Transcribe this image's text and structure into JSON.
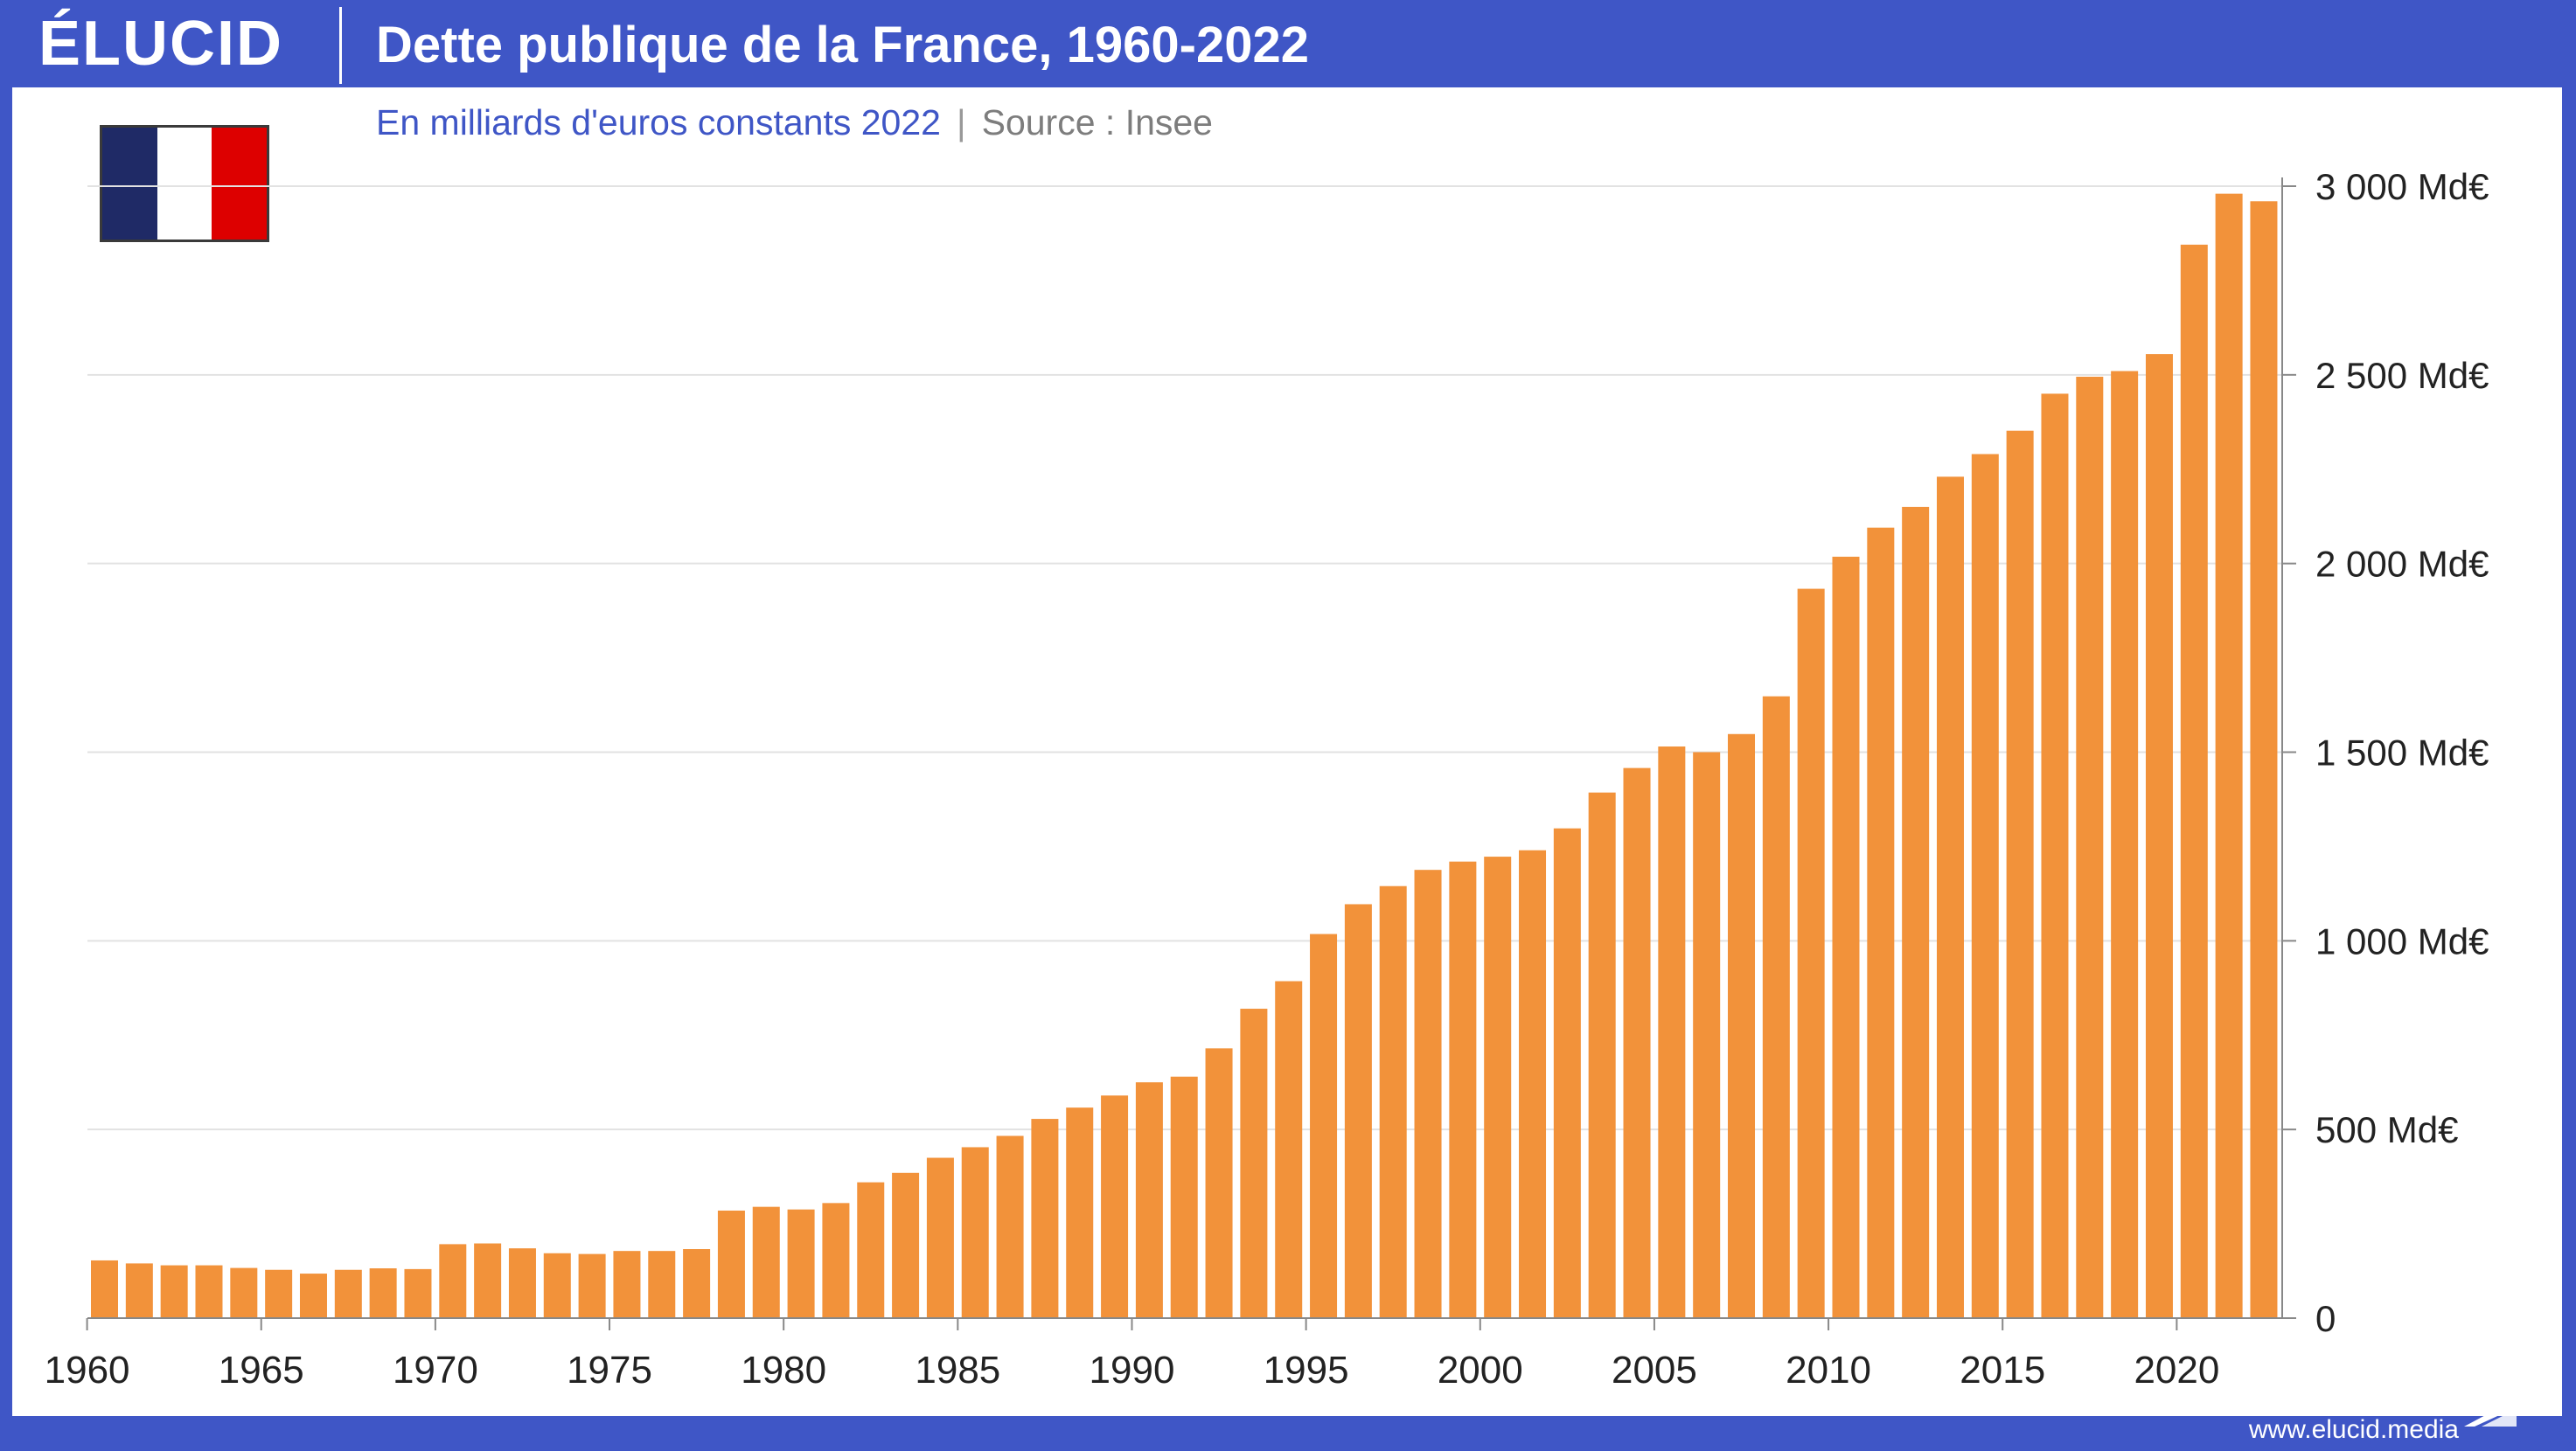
{
  "header": {
    "logo_text": "ÉLUCID",
    "title": "Dette publique de la France, 1960-2022"
  },
  "subtitle": "En milliards d'euros constants 2022",
  "separator": "|",
  "source": "Source : Insee",
  "footer_url": "www.elucid.media",
  "flag_colors": [
    "#1f2a66",
    "#ffffff",
    "#dd0000"
  ],
  "colors": {
    "brand_blue": "#3f56c6",
    "bar": "#f2923a",
    "gridline": "#e2e2e2",
    "axis": "#888888",
    "tick_text": "#222222"
  },
  "chart_data": {
    "type": "bar",
    "title": "Dette publique de la France, 1960-2022",
    "subtitle": "En milliards d'euros constants 2022",
    "source": "Source : Insee",
    "xlabel": "",
    "ylabel": "",
    "unit": "Md€",
    "ylim": [
      0,
      3000
    ],
    "y_axis_side": "right",
    "grid": true,
    "y_ticks": [
      0,
      500,
      1000,
      1500,
      2000,
      2500,
      3000
    ],
    "y_tick_labels": [
      "0",
      "500 Md€",
      "1 000 Md€",
      "1 500 Md€",
      "2 000 Md€",
      "2 500 Md€",
      "3 000 Md€"
    ],
    "x_tick_labels": [
      "1960",
      "1965",
      "1970",
      "1975",
      "1980",
      "1985",
      "1990",
      "1995",
      "2000",
      "2005",
      "2010",
      "2015",
      "2020"
    ],
    "categories": [
      1960,
      1961,
      1962,
      1963,
      1964,
      1965,
      1966,
      1967,
      1968,
      1969,
      1970,
      1971,
      1972,
      1973,
      1974,
      1975,
      1976,
      1977,
      1978,
      1979,
      1980,
      1981,
      1982,
      1983,
      1984,
      1985,
      1986,
      1987,
      1988,
      1989,
      1990,
      1991,
      1992,
      1993,
      1994,
      1995,
      1996,
      1997,
      1998,
      1999,
      2000,
      2001,
      2002,
      2003,
      2004,
      2005,
      2006,
      2007,
      2008,
      2009,
      2010,
      2011,
      2012,
      2013,
      2014,
      2015,
      2016,
      2017,
      2018,
      2019,
      2020,
      2021,
      2022
    ],
    "values": [
      153,
      145,
      140,
      140,
      133,
      128,
      118,
      128,
      132,
      130,
      196,
      198,
      185,
      172,
      170,
      178,
      178,
      183,
      285,
      295,
      288,
      305,
      360,
      385,
      425,
      453,
      483,
      528,
      558,
      590,
      625,
      640,
      715,
      820,
      893,
      1018,
      1097,
      1145,
      1188,
      1210,
      1223,
      1240,
      1298,
      1393,
      1458,
      1515,
      1500,
      1548,
      1648,
      1933,
      2018,
      2095,
      2150,
      2230,
      2290,
      2352,
      2450,
      2495,
      2510,
      2555,
      2845,
      2980,
      2960
    ]
  }
}
